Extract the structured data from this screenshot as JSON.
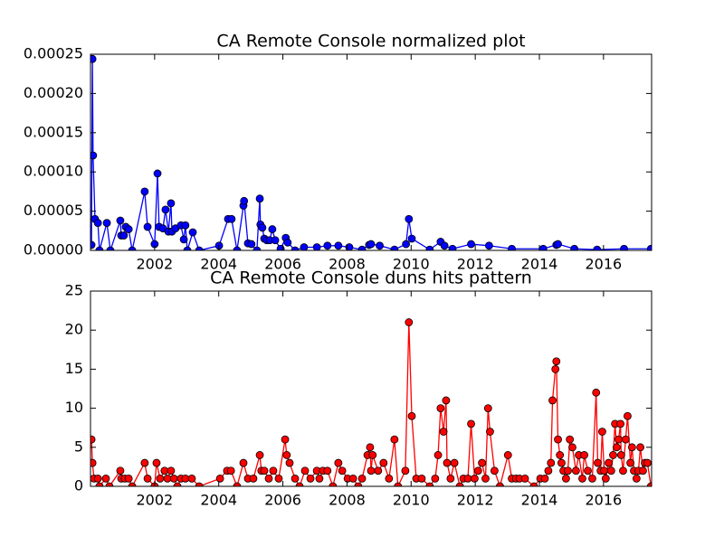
{
  "chart_data": [
    {
      "type": "line",
      "title": "CA Remote Console normalized plot",
      "x": [
        2000.03,
        2000.06,
        2000.08,
        2000.14,
        2000.23,
        2000.28,
        2000.51,
        2000.62,
        2000.93,
        2000.96,
        2001.04,
        2001.1,
        2001.19,
        2001.3,
        2001.69,
        2001.78,
        2002.0,
        2002.09,
        2002.14,
        2002.26,
        2002.34,
        2002.43,
        2002.51,
        2002.54,
        2002.65,
        2002.82,
        2002.91,
        2002.96,
        2003.02,
        2003.19,
        2003.39,
        2004.01,
        2004.29,
        2004.4,
        2004.57,
        2004.77,
        2004.79,
        2004.91,
        2005.02,
        2005.19,
        2005.28,
        2005.3,
        2005.36,
        2005.42,
        2005.5,
        2005.59,
        2005.67,
        2005.76,
        2005.93,
        2006.09,
        2006.15,
        2006.38,
        2006.66,
        2007.06,
        2007.39,
        2007.73,
        2008.07,
        2008.47,
        2008.69,
        2008.75,
        2009.02,
        2009.48,
        2009.84,
        2009.93,
        2010.02,
        2010.58,
        2010.92,
        2011.04,
        2011.29,
        2011.87,
        2012.43,
        2013.14,
        2014.12,
        2014.53,
        2014.58,
        2015.09,
        2015.8,
        2016.64,
        2017.48
      ],
      "series": [
        {
          "color": "#0000ff",
          "values": [
            7e-06,
            0.000244,
            0.000121,
            4e-05,
            3.5e-05,
            0,
            3.5e-05,
            0,
            3.8e-05,
            1.9e-05,
            1.9e-05,
            3e-05,
            2.7e-05,
            0,
            7.5e-05,
            3e-05,
            8e-06,
            9.8e-05,
            3e-05,
            2.8e-05,
            5.2e-05,
            2.4e-05,
            6e-05,
            2.4e-05,
            2.8e-05,
            3.2e-05,
            1.4e-05,
            3.2e-05,
            0,
            2.3e-05,
            0,
            6e-06,
            4e-05,
            4e-05,
            0,
            5.7e-05,
            6.3e-05,
            9e-06,
            8e-06,
            0,
            6.6e-05,
            3.3e-05,
            2.9e-05,
            1.5e-05,
            1.3e-05,
            1.3e-05,
            2.7e-05,
            1.3e-05,
            2e-06,
            1.6e-05,
            1e-05,
            0,
            4e-06,
            4e-06,
            6e-06,
            6e-06,
            4e-06,
            1e-06,
            7e-06,
            8e-06,
            6e-06,
            1e-06,
            8e-06,
            4e-05,
            1.5e-05,
            1e-06,
            1.1e-05,
            6e-06,
            2e-06,
            8e-06,
            6e-06,
            2e-06,
            2e-06,
            7e-06,
            8e-06,
            2e-06,
            1e-06,
            2e-06,
            2e-06
          ]
        }
      ],
      "xlim": [
        2000.0,
        2017.5
      ],
      "xticks": [
        2002,
        2004,
        2006,
        2008,
        2010,
        2012,
        2014,
        2016
      ],
      "ylim": [
        0,
        0.00025
      ],
      "yticks": [
        {
          "value": 0,
          "label": "0.00000"
        },
        5e-05,
        {
          "value": 0.0001,
          "label": "0.00010"
        },
        0.00015,
        {
          "value": 0.0002,
          "label": "0.00020"
        },
        0.00025
      ]
    },
    {
      "type": "line",
      "title": "CA Remote Console duns hits pattern",
      "x": [
        2000.03,
        2000.06,
        2000.11,
        2000.23,
        2000.28,
        2000.48,
        2000.59,
        2000.93,
        2000.96,
        2001.07,
        2001.19,
        2001.3,
        2001.69,
        2001.78,
        2002.0,
        2002.06,
        2002.17,
        2002.31,
        2002.4,
        2002.51,
        2002.6,
        2002.71,
        2002.82,
        2002.96,
        2003.16,
        2003.39,
        2004.04,
        2004.26,
        2004.38,
        2004.57,
        2004.77,
        2004.91,
        2005.08,
        2005.28,
        2005.33,
        2005.42,
        2005.56,
        2005.7,
        2005.87,
        2006.07,
        2006.12,
        2006.21,
        2006.38,
        2006.52,
        2006.69,
        2006.86,
        2007.06,
        2007.14,
        2007.25,
        2007.39,
        2007.56,
        2007.73,
        2007.85,
        2008.02,
        2008.19,
        2008.35,
        2008.47,
        2008.64,
        2008.72,
        2008.75,
        2008.8,
        2008.97,
        2009.14,
        2009.31,
        2009.48,
        2009.59,
        2009.82,
        2009.93,
        2010.02,
        2010.16,
        2010.33,
        2010.58,
        2010.75,
        2010.84,
        2010.92,
        2011.01,
        2011.09,
        2011.12,
        2011.23,
        2011.35,
        2011.52,
        2011.63,
        2011.77,
        2011.87,
        2011.98,
        2012.09,
        2012.21,
        2012.32,
        2012.4,
        2012.46,
        2012.6,
        2012.77,
        2013.02,
        2013.14,
        2013.27,
        2013.38,
        2013.55,
        2013.83,
        2014.03,
        2014.17,
        2014.28,
        2014.36,
        2014.41,
        2014.5,
        2014.53,
        2014.58,
        2014.64,
        2014.69,
        2014.75,
        2014.83,
        2014.89,
        2014.95,
        2015.03,
        2015.14,
        2015.23,
        2015.34,
        2015.4,
        2015.51,
        2015.65,
        2015.77,
        2015.82,
        2015.91,
        2015.96,
        2016.02,
        2016.07,
        2016.16,
        2016.24,
        2016.3,
        2016.36,
        2016.41,
        2016.47,
        2016.53,
        2016.55,
        2016.61,
        2016.69,
        2016.75,
        2016.84,
        2016.89,
        2016.95,
        2017.03,
        2017.09,
        2017.15,
        2017.23,
        2017.29,
        2017.37,
        2017.48
      ],
      "series": [
        {
          "color": "#ff0000",
          "values": [
            6,
            3,
            1,
            1,
            0,
            1,
            0,
            2,
            1,
            1,
            1,
            0,
            3,
            1,
            0,
            3,
            1,
            2,
            1,
            2,
            1,
            0,
            1,
            1,
            1,
            0,
            1,
            2,
            2,
            0,
            3,
            1,
            1,
            4,
            2,
            2,
            1,
            2,
            1,
            6,
            4,
            3,
            1,
            0,
            2,
            1,
            2,
            1,
            2,
            2,
            0,
            3,
            2,
            1,
            1,
            0,
            1,
            4,
            5,
            2,
            4,
            2,
            3,
            1,
            6,
            0,
            2,
            21,
            9,
            1,
            1,
            0,
            1,
            4,
            10,
            7,
            11,
            3,
            1,
            3,
            0,
            1,
            1,
            8,
            1,
            2,
            3,
            1,
            10,
            7,
            2,
            0,
            4,
            1,
            1,
            1,
            1,
            0,
            1,
            1,
            2,
            3,
            11,
            15,
            16,
            6,
            4,
            3,
            2,
            1,
            2,
            6,
            5,
            2,
            4,
            1,
            4,
            2,
            1,
            12,
            3,
            2,
            7,
            2,
            1,
            3,
            2,
            4,
            8,
            5,
            6,
            8,
            4,
            2,
            6,
            9,
            3,
            5,
            2,
            1,
            2,
            5,
            2,
            3,
            3,
            0
          ]
        }
      ],
      "xlim": [
        2000.0,
        2017.5
      ],
      "xticks": [
        2002,
        2004,
        2006,
        2008,
        2010,
        2012,
        2014,
        2016
      ],
      "ylim": [
        0,
        25
      ],
      "yticks": [
        0,
        5,
        10,
        15,
        20,
        25
      ]
    }
  ]
}
